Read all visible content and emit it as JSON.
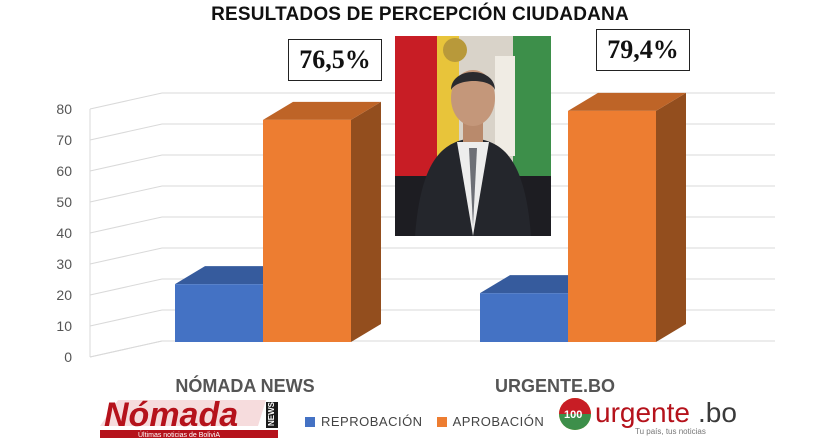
{
  "chart_data": {
    "type": "bar",
    "title": "RESULTADOS DE PERCEPCIÓN CIUDADANA",
    "categories": [
      "NÓMADA NEWS",
      "URGENTE.BO"
    ],
    "series": [
      {
        "name": "REPROBACIÓN",
        "values": [
          23.5,
          20.6
        ],
        "color": "#4472C4"
      },
      {
        "name": "APROBACIÓN",
        "values": [
          76.5,
          79.4
        ],
        "color": "#ED7D31"
      }
    ],
    "callouts": [
      "76,5%",
      "79,4%"
    ],
    "ylim": [
      0,
      80
    ],
    "yticks": [
      "0",
      "10",
      "20",
      "30",
      "40",
      "50",
      "60",
      "70",
      "80"
    ],
    "grid": true,
    "legend": "bottom",
    "style": "3d"
  },
  "logos": {
    "nomada": {
      "name": "Nómada",
      "tag": "NEWS",
      "tagline": "Últimas noticias de BoliviA"
    },
    "urgente": {
      "name": "urgente.bo",
      "tagline": "Tu país, tus noticias",
      "badge": "100"
    }
  }
}
